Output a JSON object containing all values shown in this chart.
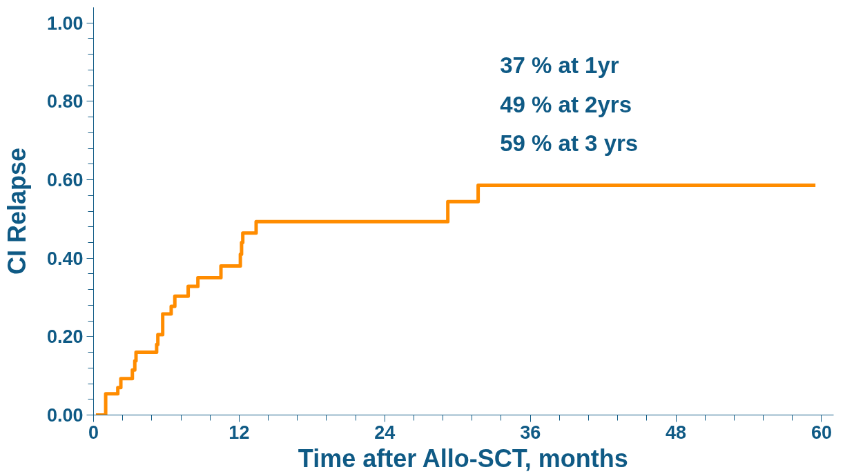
{
  "chart_data": {
    "type": "step",
    "xlabel": "Time after Allo-SCT, months",
    "ylabel": "CI Relapse",
    "series": [
      {
        "color": "#ff8c00",
        "x": [
          0.2,
          1.0,
          2.0,
          2.25,
          3.2,
          3.4,
          3.5,
          5.2,
          5.3,
          5.7,
          6.4,
          6.7,
          7.8,
          8.6,
          10.5,
          12.1,
          12.2,
          12.3,
          13.4,
          29.2,
          31.7,
          59.5
        ],
        "values": [
          0.0,
          0.054,
          0.07,
          0.093,
          0.115,
          0.138,
          0.16,
          0.18,
          0.205,
          0.258,
          0.277,
          0.303,
          0.328,
          0.35,
          0.38,
          0.41,
          0.44,
          0.464,
          0.493,
          0.544,
          0.586,
          0.586
        ]
      }
    ],
    "xlim": [
      0,
      61
    ],
    "ylim": [
      0,
      1.04
    ],
    "xticks": [
      0,
      12,
      24,
      36,
      48,
      60
    ],
    "yticks": [
      {
        "value": 0,
        "label": "0.00"
      },
      {
        "value": 0.2,
        "label": "0.20"
      },
      {
        "value": 0.4,
        "label": "0.40"
      },
      {
        "value": 0.6,
        "label": "0.60"
      },
      {
        "value": 0.8,
        "label": "0.80"
      },
      {
        "value": 1.0,
        "label": "1.00"
      }
    ],
    "annotations": [
      "37 % at 1yr",
      "49 % at 2yrs",
      "59 % at 3 yrs"
    ],
    "grid": false
  }
}
